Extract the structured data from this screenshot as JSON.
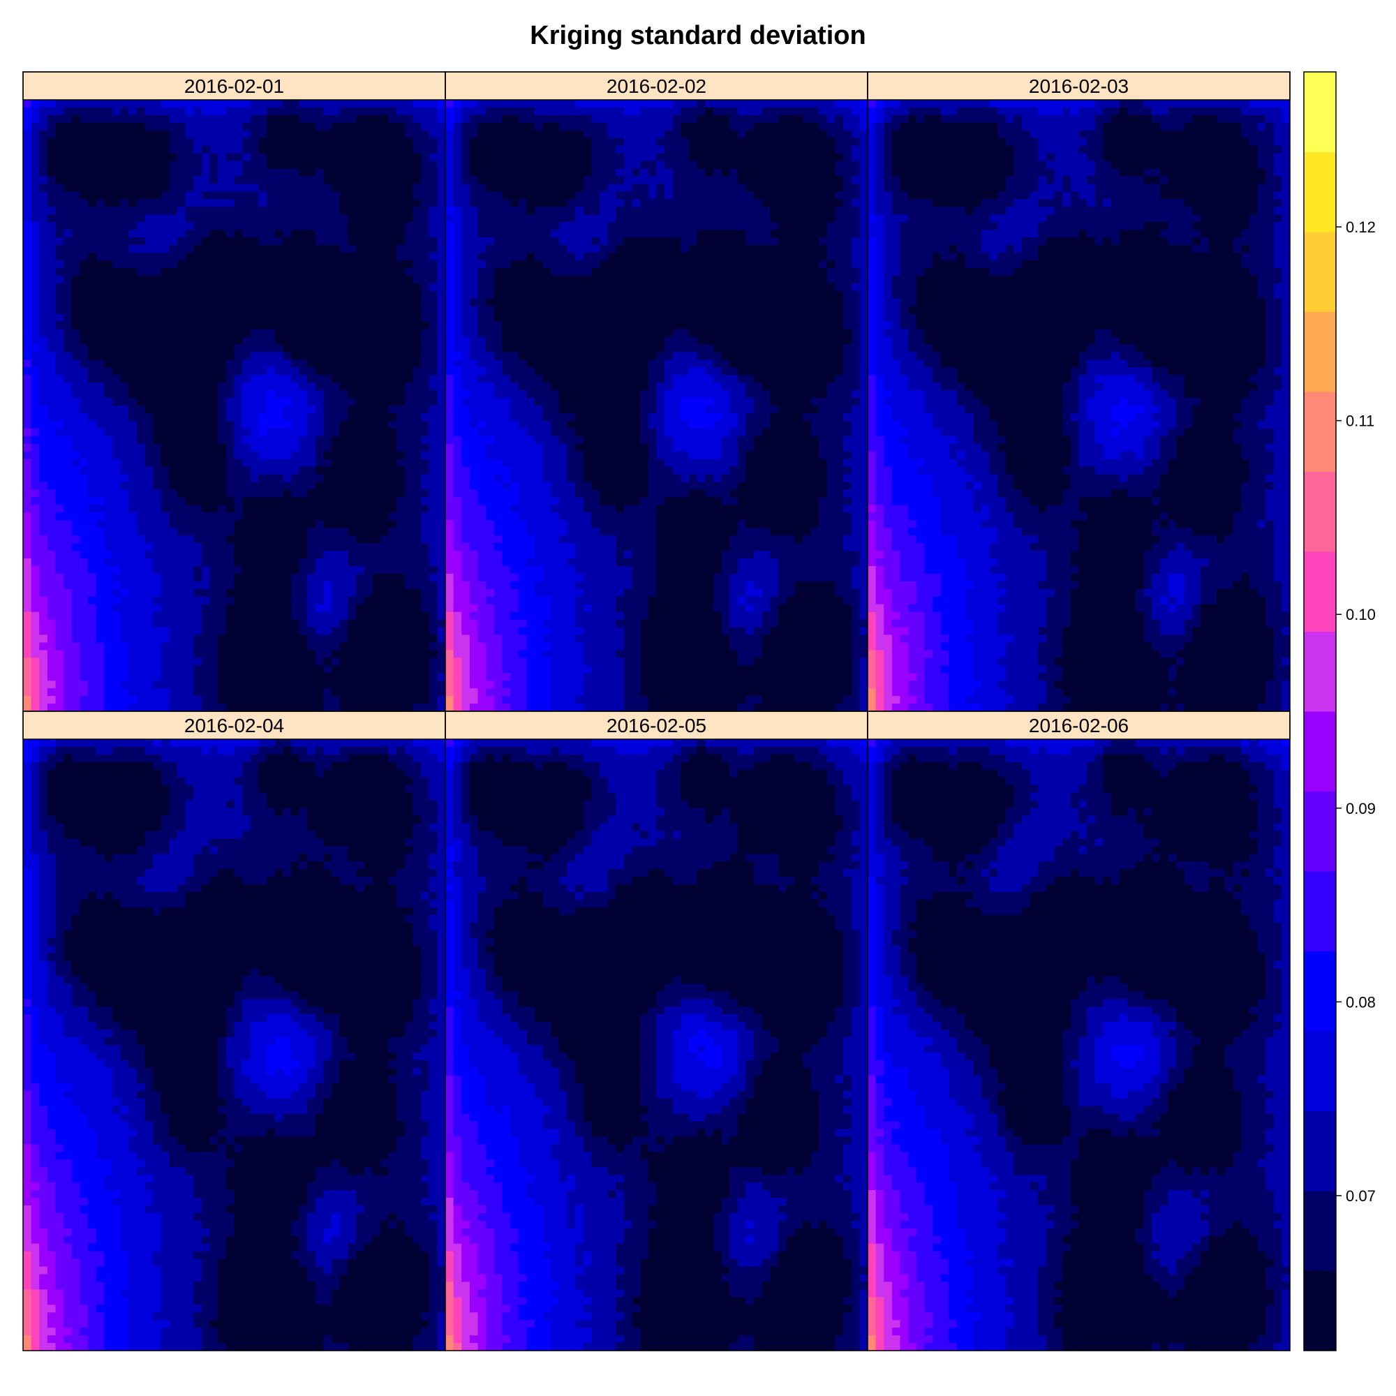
{
  "chart_data": {
    "type": "heatmap",
    "title": "Kriging standard deviation",
    "panels": [
      {
        "label": "2016-02-01",
        "seed": 1
      },
      {
        "label": "2016-02-02",
        "seed": 2
      },
      {
        "label": "2016-02-03",
        "seed": 3
      },
      {
        "label": "2016-02-04",
        "seed": 4
      },
      {
        "label": "2016-02-05",
        "seed": 5
      },
      {
        "label": "2016-02-06",
        "seed": 6
      }
    ],
    "layout": {
      "columns": 3,
      "rows": 2
    },
    "colorkey": {
      "range": [
        0.062,
        0.128
      ],
      "ticks": [
        0.07,
        0.08,
        0.09,
        0.1,
        0.11,
        0.12
      ],
      "tick_labels": [
        "0.07",
        "0.08",
        "0.09",
        "0.10",
        "0.11",
        "0.12"
      ],
      "colors": [
        "#000033",
        "#000066",
        "#0000AA",
        "#0000DD",
        "#0000FF",
        "#3300FF",
        "#6600FF",
        "#9900FF",
        "#CC33EE",
        "#FF44BB",
        "#FF6699",
        "#FF8877",
        "#FFAA55",
        "#FFCC33",
        "#FFE822",
        "#FFFF55"
      ]
    },
    "grid": false,
    "legend": "right",
    "strip_color": "#FFE4C4"
  }
}
